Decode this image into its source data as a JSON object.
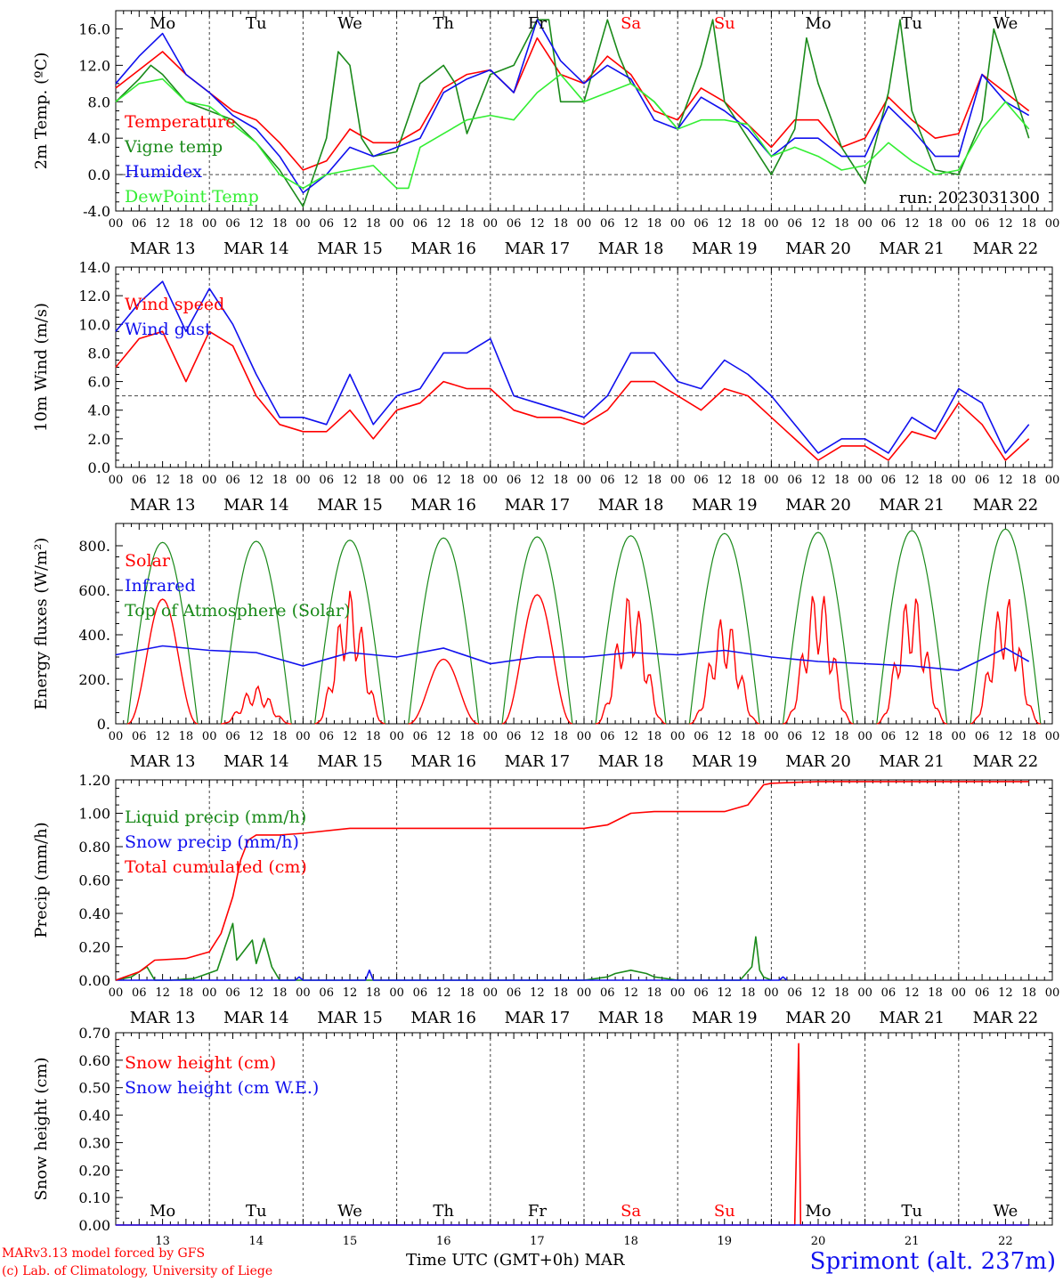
{
  "colors": {
    "red": "#ff0000",
    "green": "#1a8a1a",
    "blue": "#1010ee",
    "lightgreen": "#33ee33",
    "grid": "#444444"
  },
  "run_label": "run: 2023031300",
  "hour_ticks": [
    "00",
    "06",
    "12",
    "18"
  ],
  "date_labels": [
    "MAR 13",
    "MAR 14",
    "MAR 15",
    "MAR 16",
    "MAR 17",
    "MAR 18",
    "MAR 19",
    "MAR 20",
    "MAR 21",
    "MAR 22"
  ],
  "weekdays": [
    {
      "label": "Mo",
      "color": "#000000"
    },
    {
      "label": "Tu",
      "color": "#000000"
    },
    {
      "label": "We",
      "color": "#000000"
    },
    {
      "label": "Th",
      "color": "#000000"
    },
    {
      "label": "Fr",
      "color": "#000000"
    },
    {
      "label": "Sa",
      "color": "#ff0000"
    },
    {
      "label": "Su",
      "color": "#ff0000"
    },
    {
      "label": "Mo",
      "color": "#000000"
    },
    {
      "label": "Tu",
      "color": "#000000"
    },
    {
      "label": "We",
      "color": "#000000"
    }
  ],
  "day_numbers": [
    "13",
    "14",
    "15",
    "16",
    "17",
    "18",
    "19",
    "20",
    "21",
    "22"
  ],
  "footer": {
    "model": "MARv3.13 model forced by GFS",
    "copyright": "(c) Lab. of Climatology, University of Liege",
    "xlabel": "Time UTC (GMT+0h)",
    "month": "MAR",
    "station": "Sprimont (alt. 237m)"
  },
  "chart_data": [
    {
      "type": "line",
      "ylabel": "2m Temp. (ºC)",
      "ylim": [
        -4,
        18
      ],
      "yticks": [
        -4,
        0,
        4,
        8,
        12,
        16
      ],
      "ytick_labels": [
        "-4.0",
        "0.0",
        "4.0",
        "8.0",
        "12.0",
        "16.0"
      ],
      "ref_line": 0,
      "x_unit": "hours since MAR 13 00 UTC",
      "series": [
        {
          "name": "Temperature",
          "color": "#ff0000",
          "x": [
            0,
            6,
            12,
            18,
            24,
            30,
            36,
            42,
            48,
            54,
            60,
            66,
            72,
            78,
            84,
            90,
            96,
            102,
            108,
            114,
            120,
            126,
            132,
            138,
            144,
            150,
            156,
            162,
            168,
            174,
            180,
            186,
            192,
            198,
            204,
            210,
            216,
            222,
            228,
            234
          ],
          "y": [
            9.5,
            11.5,
            13.5,
            11,
            9,
            7,
            6,
            3.5,
            0.5,
            1.5,
            5,
            3.5,
            3.5,
            5,
            9.5,
            11,
            11.5,
            9,
            15,
            11,
            10,
            13,
            11,
            7,
            6,
            9.5,
            8,
            5.5,
            3,
            6,
            6,
            3,
            4,
            8.5,
            6,
            4,
            4.5,
            11,
            9,
            7
          ]
        },
        {
          "name": "Vigne temp",
          "color": "#1a8a1a",
          "x": [
            0,
            6,
            9,
            12,
            18,
            24,
            30,
            36,
            42,
            48,
            54,
            57,
            60,
            63,
            66,
            72,
            78,
            84,
            87,
            90,
            96,
            102,
            108,
            111,
            114,
            120,
            126,
            129,
            132,
            138,
            144,
            150,
            153,
            156,
            162,
            168,
            174,
            177,
            180,
            186,
            192,
            198,
            201,
            204,
            210,
            216,
            222,
            225,
            228,
            234
          ],
          "y": [
            8,
            10.5,
            12,
            11,
            8,
            7,
            6,
            3.5,
            0.5,
            -3.5,
            4,
            13.5,
            12,
            4,
            2,
            2.5,
            10,
            12,
            10,
            4.5,
            11,
            12,
            17,
            17,
            8,
            8,
            17,
            13,
            10,
            8,
            5,
            12,
            17,
            8,
            4,
            0,
            5,
            15,
            10,
            3,
            -1,
            9,
            17,
            7,
            0.5,
            0,
            6,
            16,
            12,
            4
          ]
        },
        {
          "name": "Humidex",
          "color": "#1010ee",
          "x": [
            0,
            6,
            12,
            18,
            24,
            30,
            36,
            42,
            48,
            54,
            60,
            66,
            72,
            78,
            84,
            90,
            96,
            102,
            108,
            114,
            120,
            126,
            132,
            138,
            144,
            150,
            156,
            162,
            168,
            174,
            180,
            186,
            192,
            198,
            204,
            210,
            216,
            222,
            228,
            234
          ],
          "y": [
            10,
            13,
            15.5,
            11,
            9,
            6.5,
            5,
            2,
            -2,
            0,
            3,
            2,
            3,
            4,
            9,
            10.5,
            11.5,
            9,
            17,
            12.5,
            10,
            12,
            10.5,
            6,
            5,
            8.5,
            7,
            5,
            2,
            4,
            4,
            2,
            2,
            7.5,
            5,
            2,
            2,
            11,
            8,
            6.5
          ]
        },
        {
          "name": "DewPoint Temp",
          "color": "#33ee33",
          "x": [
            0,
            6,
            12,
            18,
            24,
            30,
            36,
            42,
            48,
            54,
            60,
            66,
            72,
            75,
            78,
            84,
            90,
            96,
            102,
            108,
            114,
            120,
            126,
            132,
            138,
            144,
            150,
            156,
            162,
            168,
            174,
            180,
            186,
            192,
            198,
            204,
            210,
            216,
            222,
            228,
            234
          ],
          "y": [
            8,
            10,
            10.5,
            8,
            7.5,
            5.5,
            3.5,
            0,
            -1.5,
            0,
            0.5,
            1,
            -1.5,
            -1.5,
            3,
            4.5,
            6,
            6.5,
            6,
            9,
            11,
            8,
            9,
            10,
            8,
            5,
            6,
            6,
            5.5,
            2,
            3,
            2,
            0.5,
            1,
            3.5,
            1.5,
            0,
            0.5,
            5,
            8,
            5
          ]
        }
      ]
    },
    {
      "type": "line",
      "ylabel": "10m Wind (m/s)",
      "ylim": [
        0,
        14
      ],
      "yticks": [
        0,
        2,
        4,
        6,
        8,
        10,
        12,
        14
      ],
      "ytick_labels": [
        "0.0",
        "2.0",
        "4.0",
        "6.0",
        "8.0",
        "10.0",
        "12.0",
        "14.0"
      ],
      "ref_line": 5,
      "series": [
        {
          "name": "Wind speed",
          "color": "#ff0000",
          "x": [
            0,
            6,
            12,
            18,
            24,
            30,
            36,
            42,
            48,
            54,
            60,
            66,
            72,
            78,
            84,
            90,
            96,
            102,
            108,
            114,
            120,
            126,
            132,
            138,
            144,
            150,
            156,
            162,
            168,
            174,
            180,
            186,
            192,
            198,
            204,
            210,
            216,
            222,
            228,
            234
          ],
          "y": [
            7,
            9,
            9.5,
            6,
            9.5,
            8.5,
            5,
            3,
            2.5,
            2.5,
            4,
            2,
            4,
            4.5,
            6,
            5.5,
            5.5,
            4,
            3.5,
            3.5,
            3,
            4,
            6,
            6,
            5,
            4,
            5.5,
            5,
            3.5,
            2,
            0.5,
            1.5,
            1.5,
            0.5,
            2.5,
            2,
            4.5,
            3,
            0.5,
            2
          ]
        },
        {
          "name": "Wind gust",
          "color": "#1010ee",
          "x": [
            0,
            6,
            12,
            18,
            24,
            30,
            36,
            42,
            48,
            54,
            60,
            66,
            72,
            78,
            84,
            90,
            96,
            102,
            108,
            114,
            120,
            126,
            132,
            138,
            144,
            150,
            156,
            162,
            168,
            174,
            180,
            186,
            192,
            198,
            204,
            210,
            216,
            222,
            228,
            234
          ],
          "y": [
            9.5,
            11.5,
            13,
            9.5,
            12.5,
            10,
            6.5,
            3.5,
            3.5,
            3,
            6.5,
            3,
            5,
            5.5,
            8,
            8,
            9,
            5,
            4.5,
            4,
            3.5,
            5,
            8,
            8,
            6,
            5.5,
            7.5,
            6.5,
            5,
            3,
            1,
            2,
            2,
            1,
            3.5,
            2.5,
            5.5,
            4.5,
            1,
            3
          ]
        }
      ]
    },
    {
      "type": "area",
      "ylabel": "Energy fluxes (W/m²)",
      "ylim": [
        0,
        900
      ],
      "yticks": [
        0,
        200,
        400,
        600,
        800
      ],
      "ytick_labels": [
        "0.",
        "200.",
        "400.",
        "600.",
        "800."
      ],
      "series": [
        {
          "name": "Solar",
          "color": "#ff0000",
          "daily_peak_wm2": [
            560,
            170,
            600,
            290,
            580,
            590,
            490,
            620,
            600,
            580
          ]
        },
        {
          "name": "Infrared",
          "color": "#1010ee",
          "x": [
            0,
            12,
            24,
            36,
            48,
            60,
            72,
            84,
            96,
            108,
            120,
            132,
            144,
            156,
            168,
            180,
            192,
            204,
            216,
            228,
            234
          ],
          "y": [
            310,
            350,
            330,
            320,
            260,
            320,
            300,
            340,
            270,
            300,
            300,
            320,
            310,
            330,
            300,
            280,
            270,
            260,
            240,
            340,
            280
          ]
        },
        {
          "name": "Top of Atmosphere (Solar)",
          "color": "#1a8a1a",
          "daily_peak_wm2": [
            815,
            820,
            825,
            835,
            840,
            845,
            855,
            860,
            868,
            875
          ]
        }
      ]
    },
    {
      "type": "line",
      "ylabel": "Precip (mm/h)",
      "ylim": [
        0,
        1.2
      ],
      "yticks": [
        0,
        0.2,
        0.4,
        0.6,
        0.8,
        1.0,
        1.2
      ],
      "ytick_labels": [
        "0.00",
        "0.20",
        "0.40",
        "0.60",
        "0.80",
        "1.00",
        "1.20"
      ],
      "series": [
        {
          "name": "Liquid precip (mm/h)",
          "color": "#1a8a1a",
          "x": [
            0,
            4,
            8,
            10,
            14,
            20,
            26,
            28,
            30,
            31,
            33,
            35,
            36,
            38,
            40,
            42,
            48,
            84,
            120,
            126,
            128,
            132,
            136,
            138,
            144,
            160,
            163,
            164,
            165,
            166,
            168
          ],
          "y": [
            0,
            0.02,
            0.08,
            0,
            0,
            0.01,
            0.06,
            0.2,
            0.34,
            0.12,
            0.18,
            0.24,
            0.1,
            0.25,
            0.08,
            0,
            0,
            0,
            0,
            0.02,
            0.04,
            0.06,
            0.04,
            0.02,
            0,
            0,
            0.08,
            0.26,
            0.06,
            0.02,
            0
          ]
        },
        {
          "name": "Snow precip (mm/h)",
          "color": "#1010ee",
          "x": [
            0,
            46,
            47,
            48,
            64,
            65,
            66,
            68,
            170,
            171,
            172
          ],
          "y": [
            0,
            0,
            0.02,
            0,
            0,
            0.06,
            0,
            0,
            0,
            0.02,
            0
          ]
        },
        {
          "name": "Total cumulated (cm)",
          "color": "#ff0000",
          "x": [
            0,
            6,
            10,
            18,
            24,
            27,
            30,
            32,
            34,
            36,
            42,
            48,
            60,
            72,
            96,
            120,
            126,
            132,
            138,
            144,
            156,
            162,
            166,
            168,
            180,
            234
          ],
          "y": [
            0,
            0.05,
            0.12,
            0.13,
            0.17,
            0.28,
            0.5,
            0.72,
            0.84,
            0.87,
            0.87,
            0.88,
            0.91,
            0.91,
            0.91,
            0.91,
            0.93,
            1.0,
            1.01,
            1.01,
            1.01,
            1.05,
            1.17,
            1.18,
            1.19,
            1.19
          ]
        }
      ]
    },
    {
      "type": "line",
      "ylabel": "Snow height (cm)",
      "ylim": [
        0,
        0.7
      ],
      "yticks": [
        0,
        0.1,
        0.2,
        0.3,
        0.4,
        0.5,
        0.6,
        0.7
      ],
      "ytick_labels": [
        "0.00",
        "0.10",
        "0.20",
        "0.30",
        "0.40",
        "0.50",
        "0.60",
        "0.70"
      ],
      "series": [
        {
          "name": "Snow height (cm)",
          "color": "#ff0000",
          "x": [
            0,
            174,
            175,
            175.5,
            176,
            234
          ],
          "y": [
            0,
            0,
            0.66,
            0,
            0,
            0
          ]
        },
        {
          "name": "Snow height (cm W.E.)",
          "color": "#1010ee",
          "x": [
            0,
            234
          ],
          "y": [
            0,
            0
          ]
        }
      ]
    }
  ]
}
